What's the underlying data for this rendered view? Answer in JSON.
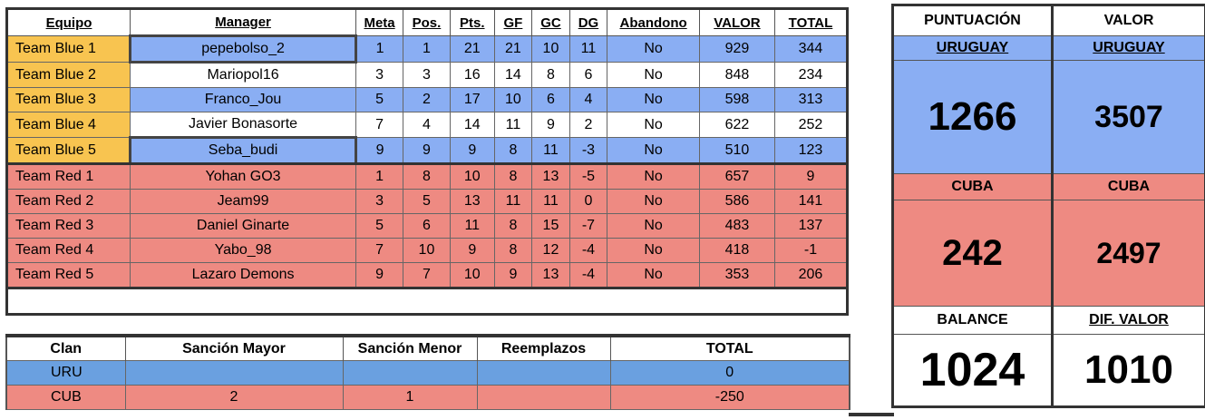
{
  "main": {
    "headers": [
      "Equipo",
      "Manager",
      "Meta",
      "Pos.",
      "Pts.",
      "GF",
      "GC",
      "DG",
      "Abandono",
      "VALOR",
      "TOTAL"
    ],
    "rows": [
      {
        "team": "Team Blue 1",
        "manager": "pepebolso_2",
        "meta": "1",
        "pos": "1",
        "pts": "21",
        "gf": "21",
        "gc": "10",
        "dg": "11",
        "abandono": "No",
        "valor": "929",
        "total": "344"
      },
      {
        "team": "Team Blue 2",
        "manager": "Mariopol16",
        "meta": "3",
        "pos": "3",
        "pts": "16",
        "gf": "14",
        "gc": "8",
        "dg": "6",
        "abandono": "No",
        "valor": "848",
        "total": "234"
      },
      {
        "team": "Team Blue 3",
        "manager": "Franco_Jou",
        "meta": "5",
        "pos": "2",
        "pts": "17",
        "gf": "10",
        "gc": "6",
        "dg": "4",
        "abandono": "No",
        "valor": "598",
        "total": "313"
      },
      {
        "team": "Team Blue 4",
        "manager": "Javier Bonasorte",
        "meta": "7",
        "pos": "4",
        "pts": "14",
        "gf": "11",
        "gc": "9",
        "dg": "2",
        "abandono": "No",
        "valor": "622",
        "total": "252"
      },
      {
        "team": "Team Blue 5",
        "manager": "Seba_budi",
        "meta": "9",
        "pos": "9",
        "pts": "9",
        "gf": "8",
        "gc": "11",
        "dg": "-3",
        "abandono": "No",
        "valor": "510",
        "total": "123"
      },
      {
        "team": "Team Red 1",
        "manager": "Yohan GO3",
        "meta": "1",
        "pos": "8",
        "pts": "10",
        "gf": "8",
        "gc": "13",
        "dg": "-5",
        "abandono": "No",
        "valor": "657",
        "total": "9"
      },
      {
        "team": "Team Red 2",
        "manager": "Jeam99",
        "meta": "3",
        "pos": "5",
        "pts": "13",
        "gf": "11",
        "gc": "11",
        "dg": "0",
        "abandono": "No",
        "valor": "586",
        "total": "141"
      },
      {
        "team": "Team Red 3",
        "manager": "Daniel Ginarte",
        "meta": "5",
        "pos": "6",
        "pts": "11",
        "gf": "8",
        "gc": "15",
        "dg": "-7",
        "abandono": "No",
        "valor": "483",
        "total": "137"
      },
      {
        "team": "Team Red 4",
        "manager": "Yabo_98",
        "meta": "7",
        "pos": "10",
        "pts": "9",
        "gf": "8",
        "gc": "12",
        "dg": "-4",
        "abandono": "No",
        "valor": "418",
        "total": "-1"
      },
      {
        "team": "Team Red 5",
        "manager": "Lazaro Demons",
        "meta": "9",
        "pos": "7",
        "pts": "10",
        "gf": "9",
        "gc": "13",
        "dg": "-4",
        "abandono": "No",
        "valor": "353",
        "total": "206"
      }
    ]
  },
  "lower": {
    "headers": [
      "Clan",
      "Sanción Mayor",
      "Sanción Menor",
      "Reemplazos",
      "TOTAL"
    ],
    "rows": [
      {
        "clan": "URU",
        "mayor": "",
        "menor": "",
        "reemplazos": "",
        "total": "0"
      },
      {
        "clan": "CUB",
        "mayor": "2",
        "menor": "1",
        "reemplazos": "",
        "total": "-250"
      }
    ]
  },
  "right": {
    "puntuacion_label": "PUNTUACIÓN",
    "valor_label": "VALOR",
    "uruguay_label": "URUGUAY",
    "uruguay_puntuacion": "1266",
    "uruguay_valor": "3507",
    "cuba_label": "CUBA",
    "cuba_puntuacion": "242",
    "cuba_valor": "2497",
    "balance_label": "BALANCE",
    "dif_valor_label": "DIF. VALOR",
    "balance": "1024",
    "dif_valor": "1010"
  },
  "colors": {
    "yellow": "#f8c450",
    "blue": "#8aaef3",
    "red": "#ee8a82",
    "uru": "#6aa0e0"
  }
}
